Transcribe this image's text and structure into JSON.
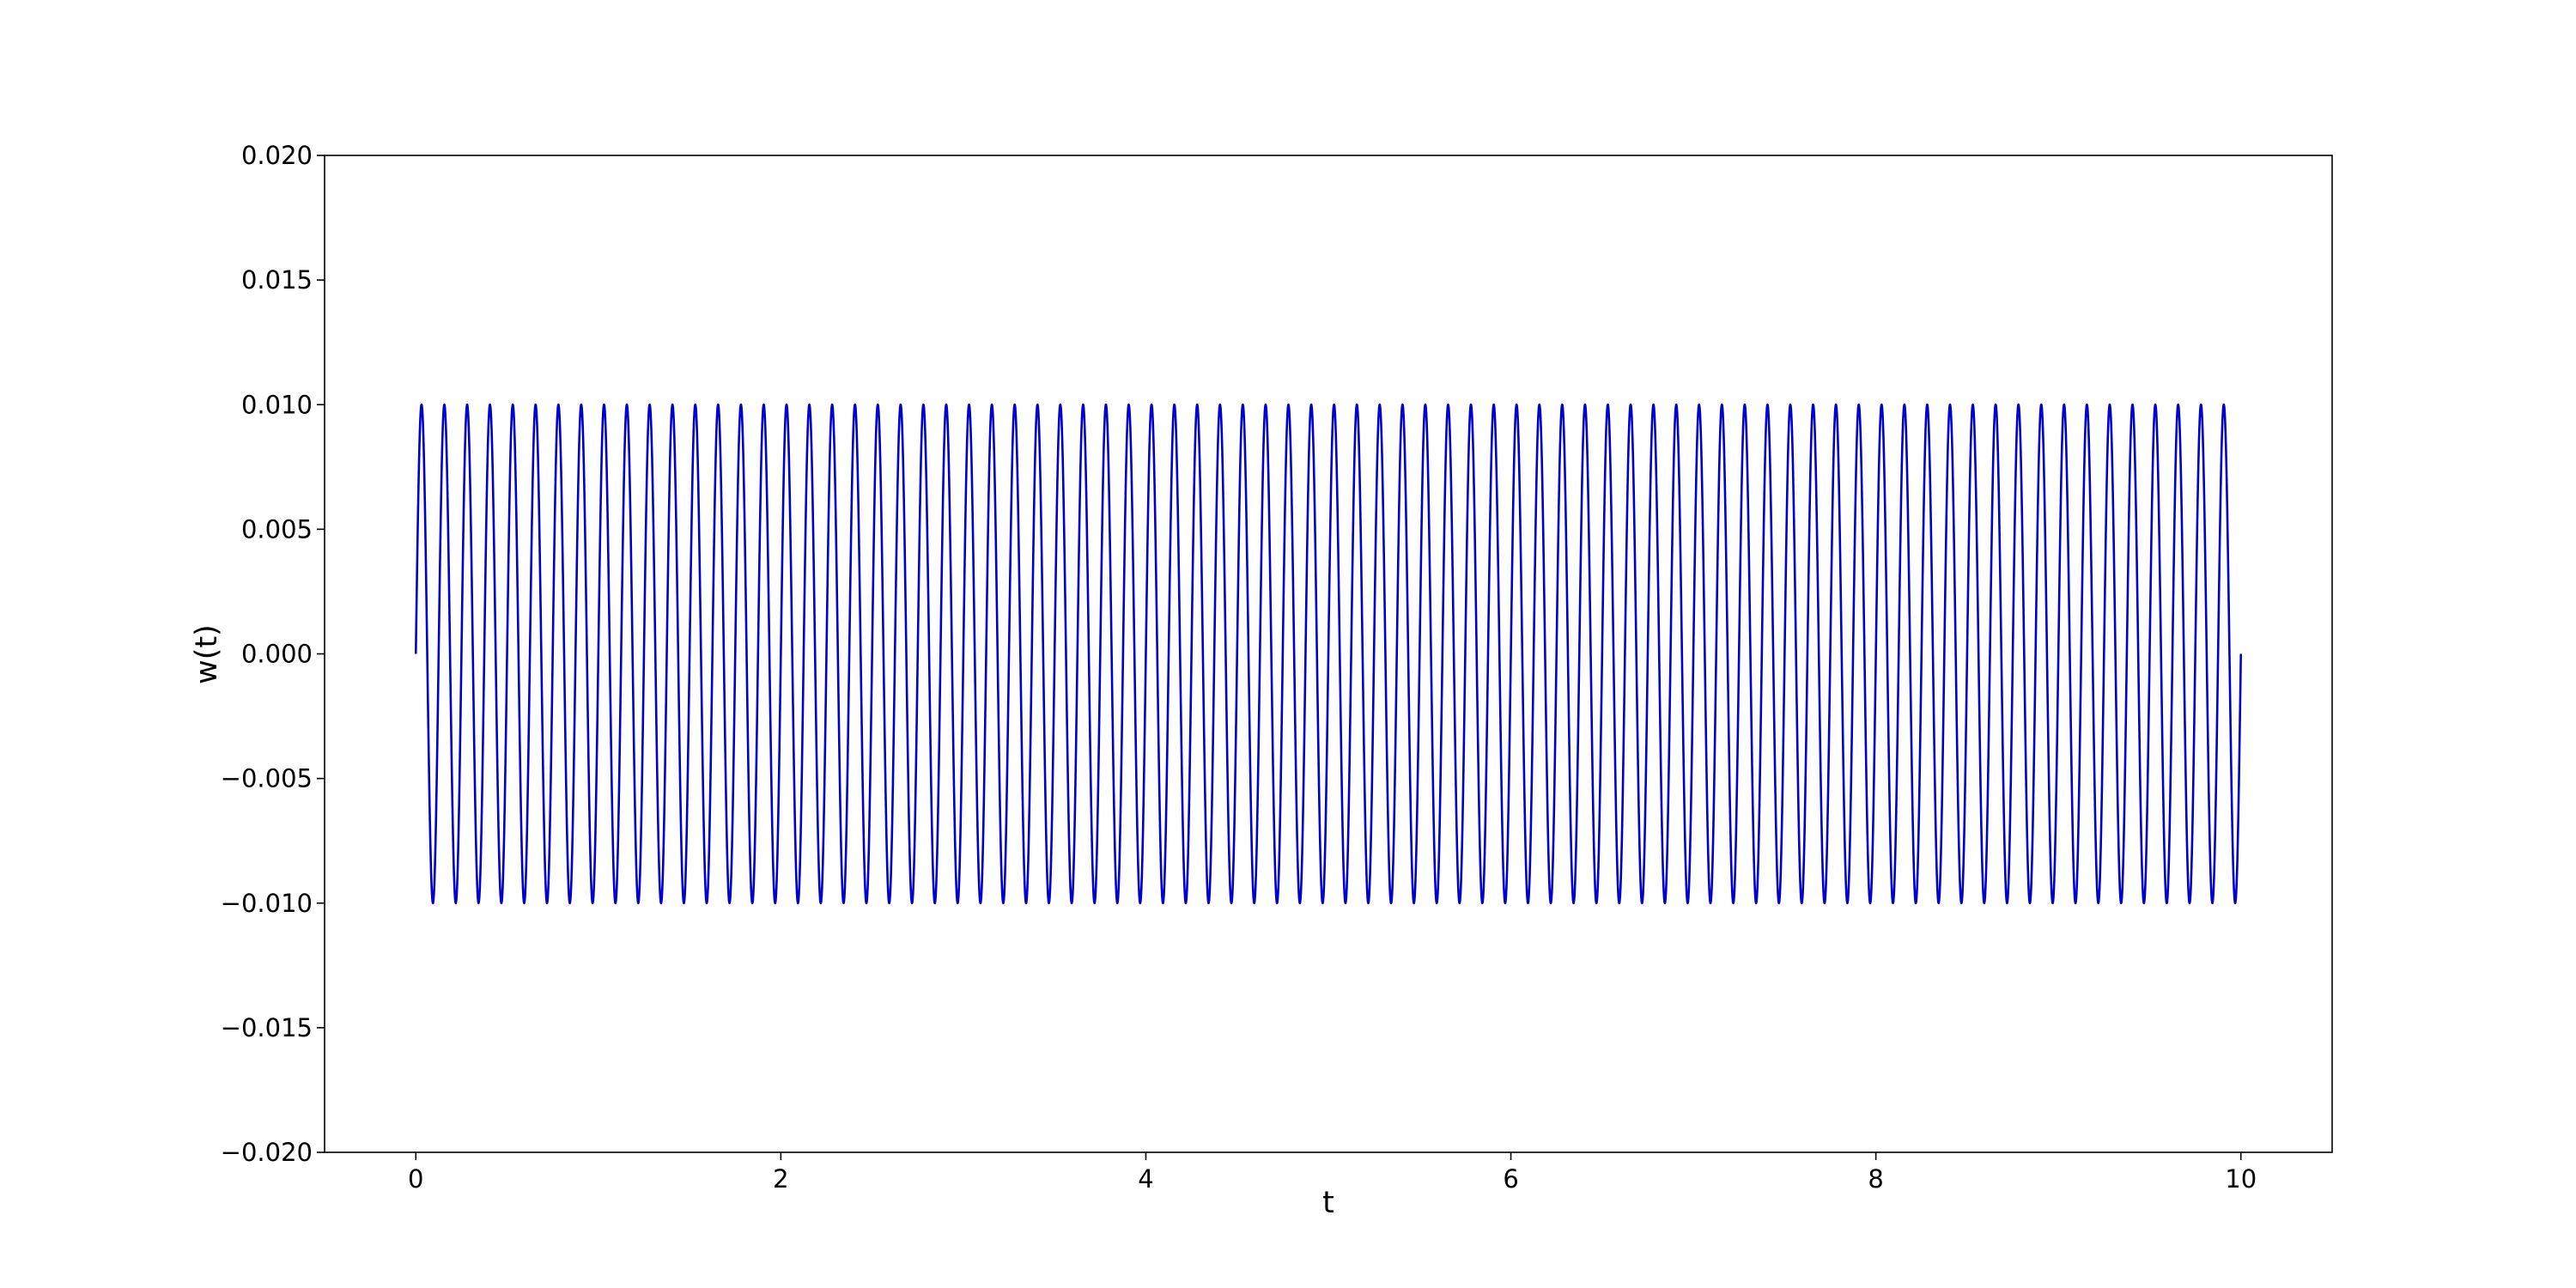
{
  "chart_data": {
    "type": "line",
    "title": "",
    "xlabel": "t",
    "ylabel": "w(t)",
    "xlim": [
      -0.5,
      10.5
    ],
    "ylim": [
      -0.02,
      0.02
    ],
    "x_ticks": [
      0,
      2,
      4,
      6,
      8,
      10
    ],
    "x_tick_labels": [
      "0",
      "2",
      "4",
      "6",
      "8",
      "10"
    ],
    "y_ticks": [
      -0.02,
      -0.015,
      -0.01,
      -0.005,
      0,
      0.005,
      0.01,
      0.015,
      0.02
    ],
    "y_tick_labels": [
      "−0.020",
      "−0.015",
      "−0.010",
      "−0.005",
      "0.000",
      "0.005",
      "0.010",
      "0.015",
      "0.020"
    ],
    "grid": false,
    "series": [
      {
        "function": "w(t) = A sin(2π f t)",
        "amplitude": 0.01,
        "frequency": 8,
        "t_start": 0,
        "t_end": 10,
        "color": "#0000cc"
      }
    ]
  }
}
